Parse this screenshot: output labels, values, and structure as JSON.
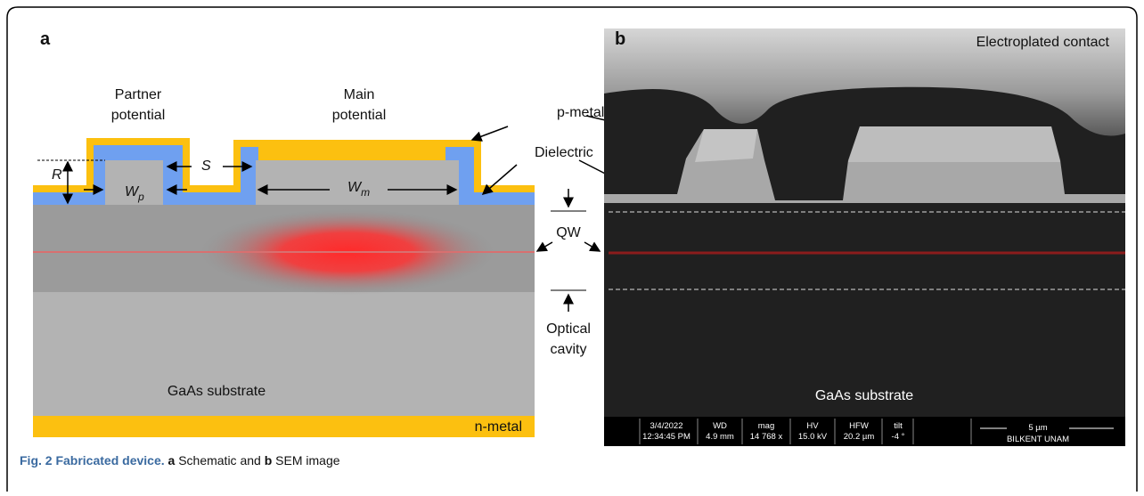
{
  "panel_a": {
    "label": "a",
    "partner_potential": [
      "Partner",
      "potential"
    ],
    "main_potential": [
      "Main",
      "potential"
    ],
    "r": "R",
    "s": "S",
    "wp": {
      "base": "W",
      "sub": "p"
    },
    "wm": {
      "base": "W",
      "sub": "m"
    },
    "substrate": "GaAs substrate",
    "n_metal": "n-metal"
  },
  "annotations": {
    "p_metal": "p-metal",
    "dielectric": "Dielectric",
    "qw": "QW",
    "optical_cavity": [
      "Optical",
      "cavity"
    ]
  },
  "panel_b": {
    "label": "b",
    "electroplated": "Electroplated contact",
    "substrate": "GaAs substrate",
    "info": [
      [
        "3/4/2022",
        "12:34:45 PM"
      ],
      [
        "WD",
        "4.9 mm"
      ],
      [
        "mag",
        "14 768 x"
      ],
      [
        "HV",
        "15.0 kV"
      ],
      [
        "HFW",
        "20.2 µm"
      ],
      [
        "tilt",
        "-4 °"
      ]
    ],
    "scale": "5 µm",
    "institution": "BILKENT UNAM"
  },
  "caption": {
    "fig": "Fig. 2 Fabricated device.",
    "a": "a",
    "text1": "Schematic and",
    "b": "b",
    "text2": "SEM image"
  }
}
